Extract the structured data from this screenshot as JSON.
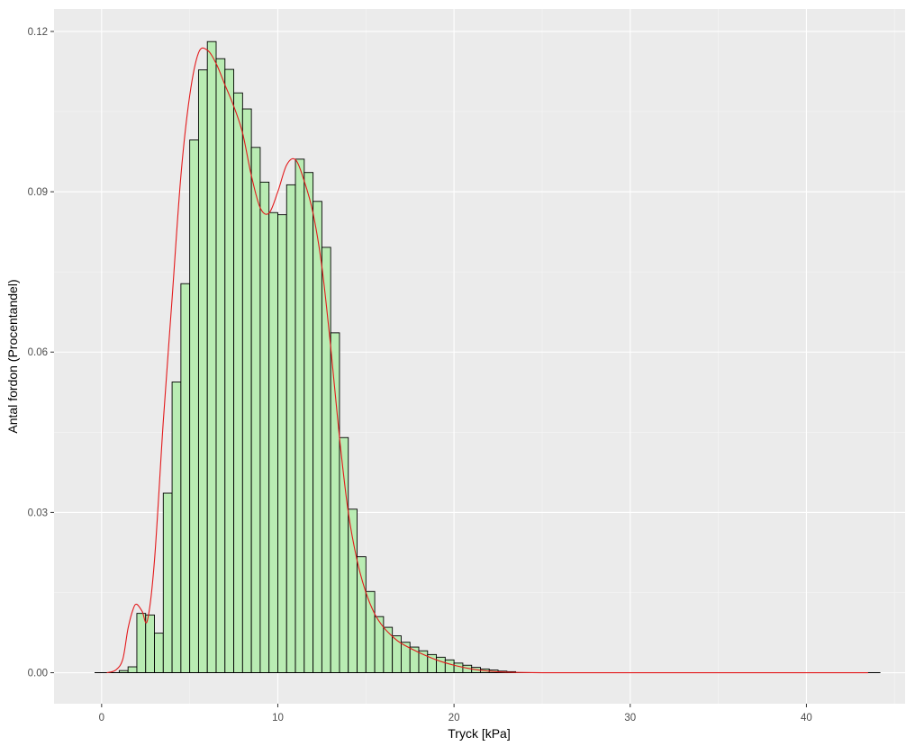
{
  "chart_data": {
    "type": "bar",
    "title": "",
    "xlabel": "Tryck [kPa]",
    "ylabel": "Antal fordon (Procentandel)",
    "xlim": [
      -2.7,
      45.6
    ],
    "ylim": [
      -0.0058,
      0.1242
    ],
    "x_ticks": [
      0,
      10,
      20,
      30,
      40
    ],
    "x_tick_labels": [
      "0",
      "10",
      "20",
      "30",
      "40"
    ],
    "y_ticks": [
      0.0,
      0.03,
      0.06,
      0.09,
      0.12
    ],
    "y_tick_labels": [
      "0.00",
      "0.03",
      "0.06",
      "0.09",
      "0.12"
    ],
    "grid": true,
    "bin_width": 0.5,
    "bin_start": 1.0,
    "bins_centers_note_removed": "",
    "values": [
      0.0004,
      0.0011,
      0.0111,
      0.0108,
      0.0074,
      0.0336,
      0.0544,
      0.0728,
      0.0997,
      0.1128,
      0.1181,
      0.1149,
      0.1129,
      0.1085,
      0.1055,
      0.0983,
      0.0918,
      0.0861,
      0.0857,
      0.0913,
      0.0961,
      0.0936,
      0.0882,
      0.0796,
      0.0636,
      0.044,
      0.0306,
      0.0217,
      0.0152,
      0.0105,
      0.0085,
      0.0069,
      0.0057,
      0.0048,
      0.0041,
      0.0034,
      0.0029,
      0.0024,
      0.0018,
      0.0014,
      0.001,
      0.0007,
      0.0005,
      0.0003,
      0.0002
    ],
    "baseline_range": [
      -0.4,
      44.2
    ],
    "density_series": {
      "name": "",
      "x": [
        0.3,
        0.8,
        1.2,
        1.5,
        1.8,
        2.0,
        2.3,
        2.6,
        3.0,
        3.5,
        4.0,
        4.5,
        5.0,
        5.5,
        6.0,
        6.5,
        7.0,
        7.5,
        8.0,
        8.5,
        9.0,
        9.5,
        10.0,
        10.5,
        11.0,
        11.5,
        12.0,
        12.5,
        13.0,
        13.5,
        14.0,
        14.5,
        15.0,
        15.5,
        16.0,
        16.5,
        17.0,
        18.0,
        19.0,
        20.0,
        21.0,
        22.0,
        23.0,
        25.0,
        30.0,
        35.0,
        40.0,
        43.5
      ],
      "y": [
        0.0,
        0.0005,
        0.0025,
        0.0083,
        0.012,
        0.0128,
        0.0115,
        0.0098,
        0.021,
        0.047,
        0.07,
        0.093,
        0.108,
        0.116,
        0.1165,
        0.114,
        0.11,
        0.106,
        0.101,
        0.093,
        0.087,
        0.086,
        0.09,
        0.095,
        0.096,
        0.092,
        0.086,
        0.076,
        0.061,
        0.044,
        0.03,
        0.021,
        0.015,
        0.011,
        0.0085,
        0.0068,
        0.0055,
        0.0038,
        0.0024,
        0.0014,
        0.0007,
        0.0003,
        0.0001,
        0.0,
        0.0,
        0.0,
        0.0,
        0.0
      ]
    },
    "colors": {
      "panel_background": "#ebebeb",
      "grid_major": "#ffffff",
      "grid_minor": "#f5f5f5",
      "bar_fill": "#b9ecb3",
      "bar_stroke": "#000000",
      "density_line": "#e31a1c",
      "tick_text": "#4d4d4d"
    }
  }
}
